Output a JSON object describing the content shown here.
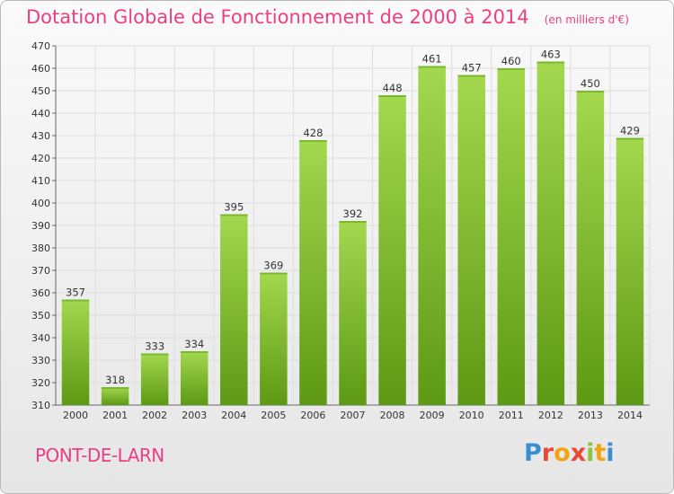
{
  "title": "Dotation Globale de Fonctionnement de 2000 à 2014",
  "subtitle": "(en milliers d'€)",
  "place": "PONT-DE-LARN",
  "logo": {
    "text": "Proxiti",
    "colors": [
      "#3b8fd1",
      "#e8483a",
      "#f2a413",
      "#e8483a",
      "#8cc63f",
      "#f2a413",
      "#3b8fd1"
    ]
  },
  "colors": {
    "bar_top": "#a3d84f",
    "bar_bottom": "#5d9914",
    "accent": "#ec3e82",
    "grid": "#dddddd"
  },
  "chart_data": {
    "type": "bar",
    "title": "Dotation Globale de Fonctionnement de 2000 à 2014",
    "subtitle": "(en milliers d'€)",
    "categories": [
      "2000",
      "2001",
      "2002",
      "2003",
      "2004",
      "2005",
      "2006",
      "2007",
      "2008",
      "2009",
      "2010",
      "2011",
      "2012",
      "2013",
      "2014"
    ],
    "values": [
      357,
      318,
      333,
      334,
      395,
      369,
      428,
      392,
      448,
      461,
      457,
      460,
      463,
      450,
      429
    ],
    "ylim": [
      310,
      470
    ],
    "yticks": [
      310,
      320,
      330,
      340,
      350,
      360,
      370,
      380,
      390,
      400,
      410,
      420,
      430,
      440,
      450,
      460,
      470
    ],
    "grid": true,
    "data_labels": true
  }
}
